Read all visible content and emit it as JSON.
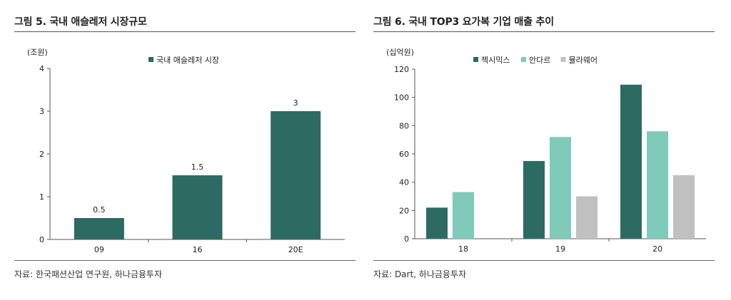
{
  "figures": [
    {
      "title": "그림 5. 국내 애슬레저 시장규모",
      "source": "자료: 한국패션산업 연구원, 하나금융투자"
    },
    {
      "title": "그림 6. 국내 TOP3 요가복 기업 매출 추이",
      "source": "자료: Dart, 하나금융투자"
    }
  ],
  "chart_data": [
    {
      "type": "bar",
      "title": "",
      "unit_label": "(조원)",
      "categories": [
        "09",
        "16",
        "20E"
      ],
      "series": [
        {
          "name": "국내 애슬레저 시장",
          "values": [
            0.5,
            1.5,
            3
          ],
          "color": "#2d6b62"
        }
      ],
      "data_labels": [
        "0.5",
        "1.5",
        "3"
      ],
      "ylim": [
        0,
        4
      ],
      "yticks": [
        0,
        1,
        2,
        3,
        4
      ],
      "legend": "top-center",
      "grid": false
    },
    {
      "type": "bar",
      "title": "",
      "unit_label": "(십억원)",
      "categories": [
        "18",
        "19",
        "20"
      ],
      "series": [
        {
          "name": "젝시믹스",
          "values": [
            22,
            55,
            109
          ],
          "color": "#2d6b62"
        },
        {
          "name": "안다르",
          "values": [
            33,
            72,
            76
          ],
          "color": "#7fcab9"
        },
        {
          "name": "뮬라웨어",
          "values": [
            null,
            30,
            45
          ],
          "color": "#c0c0c0"
        }
      ],
      "ylim": [
        0,
        120
      ],
      "yticks": [
        0,
        20,
        40,
        60,
        80,
        100,
        120
      ],
      "legend": "top-center",
      "grid": false
    }
  ]
}
